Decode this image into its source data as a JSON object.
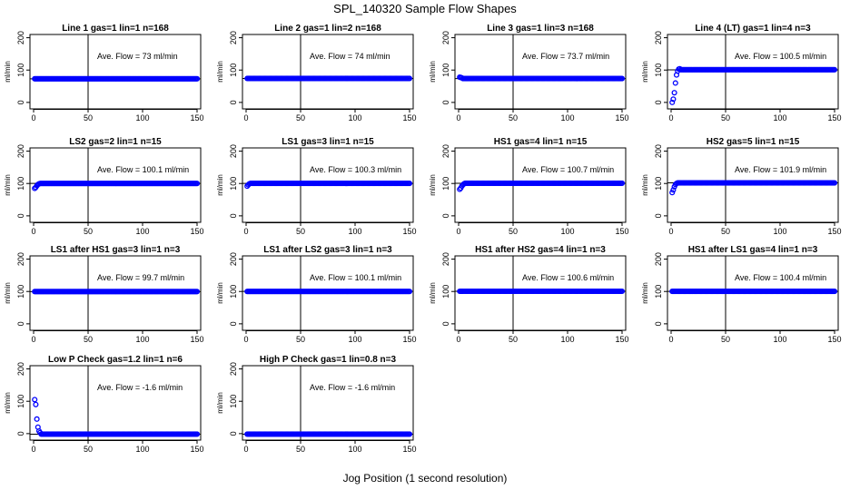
{
  "figure": {
    "title": "SPL_140320  Sample Flow Shapes",
    "xlabel": "Jog Position (1 second resolution)",
    "point_color": "#0000ff"
  },
  "chart_data": [
    {
      "type": "scatter",
      "title": "Line 1 gas=1 lin=1 n=168",
      "ylabel": "ml/min",
      "annotation": "Ave. Flow = 73  ml/min",
      "xlim": [
        0,
        150
      ],
      "ylim": [
        -20,
        210
      ],
      "xticks": [
        0,
        50,
        100,
        150
      ],
      "yticks": [
        0,
        100,
        200
      ],
      "hline": 73,
      "vline": 50,
      "n_points": 150,
      "transient": [],
      "steady": 73
    },
    {
      "type": "scatter",
      "title": "Line 2 gas=1 lin=2 n=168",
      "ylabel": "ml/min",
      "annotation": "Ave. Flow = 74  ml/min",
      "xlim": [
        0,
        150
      ],
      "ylim": [
        -20,
        210
      ],
      "xticks": [
        0,
        50,
        100,
        150
      ],
      "yticks": [
        0,
        100,
        200
      ],
      "hline": 74,
      "vline": 50,
      "n_points": 150,
      "transient": [],
      "steady": 74
    },
    {
      "type": "scatter",
      "title": "Line 3 gas=1 lin=3 n=168",
      "ylabel": "ml/min",
      "annotation": "Ave. Flow = 73.7  ml/min",
      "xlim": [
        0,
        150
      ],
      "ylim": [
        -20,
        210
      ],
      "xticks": [
        0,
        50,
        100,
        150
      ],
      "yticks": [
        0,
        100,
        200
      ],
      "hline": 73.7,
      "vline": 50,
      "n_points": 150,
      "transient": [
        78,
        77,
        76
      ],
      "steady": 73.7
    },
    {
      "type": "scatter",
      "title": "Line 4 (LT) gas=1 lin=4 n=3",
      "ylabel": "ml/min",
      "annotation": "Ave. Flow = 100.5  ml/min",
      "xlim": [
        0,
        150
      ],
      "ylim": [
        -20,
        210
      ],
      "xticks": [
        0,
        50,
        100,
        150
      ],
      "yticks": [
        0,
        100,
        200
      ],
      "hline": 100.5,
      "vline": 50,
      "n_points": 150,
      "transient": [
        0,
        10,
        30,
        60,
        85,
        97,
        103,
        104
      ],
      "steady": 101
    },
    {
      "type": "scatter",
      "title": "LS2 gas=2 lin=1 n=15",
      "ylabel": "ml/min",
      "annotation": "Ave. Flow = 100.1  ml/min",
      "xlim": [
        0,
        150
      ],
      "ylim": [
        -20,
        210
      ],
      "xticks": [
        0,
        50,
        100,
        150
      ],
      "yticks": [
        0,
        100,
        200
      ],
      "hline": 100.1,
      "vline": 50,
      "n_points": 150,
      "transient": [
        85,
        88,
        93,
        97,
        99
      ],
      "steady": 100.1
    },
    {
      "type": "scatter",
      "title": "LS1 gas=3 lin=1 n=15",
      "ylabel": "ml/min",
      "annotation": "Ave. Flow = 100.3  ml/min",
      "xlim": [
        0,
        150
      ],
      "ylim": [
        -20,
        210
      ],
      "xticks": [
        0,
        50,
        100,
        150
      ],
      "yticks": [
        0,
        100,
        200
      ],
      "hline": 100.3,
      "vline": 50,
      "n_points": 150,
      "transient": [
        92,
        96,
        99
      ],
      "steady": 100.3
    },
    {
      "type": "scatter",
      "title": "HS1 gas=4 lin=1 n=15",
      "ylabel": "ml/min",
      "annotation": "Ave. Flow = 100.7  ml/min",
      "xlim": [
        0,
        150
      ],
      "ylim": [
        -20,
        210
      ],
      "xticks": [
        0,
        50,
        100,
        150
      ],
      "yticks": [
        0,
        100,
        200
      ],
      "hline": 100.7,
      "vline": 50,
      "n_points": 150,
      "transient": [
        82,
        86,
        92,
        96,
        99
      ],
      "steady": 100.7
    },
    {
      "type": "scatter",
      "title": "HS2 gas=5 lin=1 n=15",
      "ylabel": "ml/min",
      "annotation": "Ave. Flow = 101.9  ml/min",
      "xlim": [
        0,
        150
      ],
      "ylim": [
        -20,
        210
      ],
      "xticks": [
        0,
        50,
        100,
        150
      ],
      "yticks": [
        0,
        100,
        200
      ],
      "hline": 101.9,
      "vline": 50,
      "n_points": 150,
      "transient": [
        72,
        80,
        90,
        97,
        100
      ],
      "steady": 101.9
    },
    {
      "type": "scatter",
      "title": "LS1 after HS1 gas=3 lin=1 n=3",
      "ylabel": "ml/min",
      "annotation": "Ave. Flow = 99.7  ml/min",
      "xlim": [
        0,
        150
      ],
      "ylim": [
        -20,
        210
      ],
      "xticks": [
        0,
        50,
        100,
        150
      ],
      "yticks": [
        0,
        100,
        200
      ],
      "hline": 99.7,
      "vline": 50,
      "n_points": 150,
      "transient": [],
      "steady": 99.7
    },
    {
      "type": "scatter",
      "title": "LS1 after LS2 gas=3 lin=1 n=3",
      "ylabel": "ml/min",
      "annotation": "Ave. Flow = 100.1  ml/min",
      "xlim": [
        0,
        150
      ],
      "ylim": [
        -20,
        210
      ],
      "xticks": [
        0,
        50,
        100,
        150
      ],
      "yticks": [
        0,
        100,
        200
      ],
      "hline": 100.1,
      "vline": 50,
      "n_points": 150,
      "transient": [],
      "steady": 100.1
    },
    {
      "type": "scatter",
      "title": "HS1 after HS2 gas=4 lin=1 n=3",
      "ylabel": "ml/min",
      "annotation": "Ave. Flow = 100.6  ml/min",
      "xlim": [
        0,
        150
      ],
      "ylim": [
        -20,
        210
      ],
      "xticks": [
        0,
        50,
        100,
        150
      ],
      "yticks": [
        0,
        100,
        200
      ],
      "hline": 100.6,
      "vline": 50,
      "n_points": 150,
      "transient": [],
      "steady": 100.6
    },
    {
      "type": "scatter",
      "title": "HS1 after LS1 gas=4 lin=1 n=3",
      "ylabel": "ml/min",
      "annotation": "Ave. Flow = 100.4  ml/min",
      "xlim": [
        0,
        150
      ],
      "ylim": [
        -20,
        210
      ],
      "xticks": [
        0,
        50,
        100,
        150
      ],
      "yticks": [
        0,
        100,
        200
      ],
      "hline": 100.4,
      "vline": 50,
      "n_points": 150,
      "transient": [],
      "steady": 100.4
    },
    {
      "type": "scatter",
      "title": "Low P Check gas=1.2 lin=1 n=6",
      "ylabel": "ml/min",
      "annotation": "Ave. Flow = -1.6  ml/min",
      "xlim": [
        0,
        150
      ],
      "ylim": [
        -20,
        210
      ],
      "xticks": [
        0,
        50,
        100,
        150
      ],
      "yticks": [
        0,
        100,
        200
      ],
      "hline": -1.6,
      "vline": 50,
      "n_points": 150,
      "transient": [
        105,
        90,
        45,
        20,
        8,
        3
      ],
      "steady": -1.6
    },
    {
      "type": "scatter",
      "title": "High P Check gas=1 lin=0.8 n=3",
      "ylabel": "ml/min",
      "annotation": "Ave. Flow = -1.6  ml/min",
      "xlim": [
        0,
        150
      ],
      "ylim": [
        -20,
        210
      ],
      "xticks": [
        0,
        50,
        100,
        150
      ],
      "yticks": [
        0,
        100,
        200
      ],
      "hline": -1.6,
      "vline": 50,
      "n_points": 150,
      "transient": [],
      "steady": -1.6
    }
  ]
}
